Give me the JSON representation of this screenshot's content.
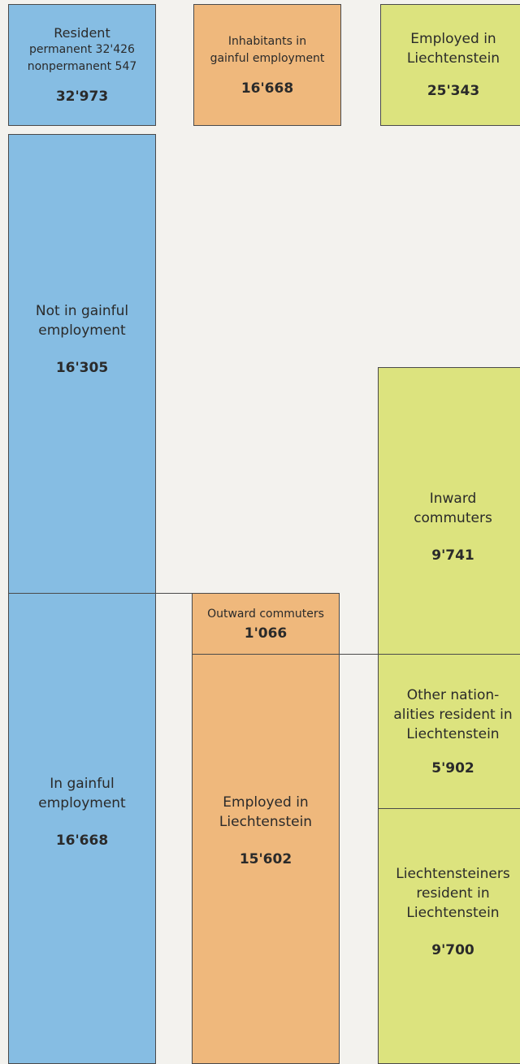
{
  "header": {
    "resident": {
      "lines": [
        "Resident",
        "permanent  32'426",
        "nonpermanent 547"
      ],
      "value": "32'973"
    },
    "inhabitants": {
      "lines": [
        "Inhabitants in",
        "gainful employment"
      ],
      "value": "16'668"
    },
    "employed": {
      "lines": [
        "Employed in",
        "Liechtenstein"
      ],
      "value": "25'343"
    }
  },
  "blocks": {
    "not_gainful": {
      "lines": [
        "Not in gainful",
        "employment"
      ],
      "value": "16'305"
    },
    "in_gainful": {
      "lines": [
        "In gainful",
        "employment"
      ],
      "value": "16'668"
    },
    "outward": {
      "lines": [
        "Outward commuters"
      ],
      "value": "1'066"
    },
    "employed_li": {
      "lines": [
        "Employed in",
        "Liechtenstein"
      ],
      "value": "15'602"
    },
    "inward": {
      "lines": [
        "Inward",
        "commuters"
      ],
      "value": "9'741"
    },
    "other_nat": {
      "lines": [
        "Other nation-",
        "alities resident in",
        "Liechtenstein"
      ],
      "value": "5'902"
    },
    "li_res": {
      "lines": [
        "Liechtensteiners",
        "resident in",
        "Liechtenstein"
      ],
      "value": "9'700"
    }
  }
}
